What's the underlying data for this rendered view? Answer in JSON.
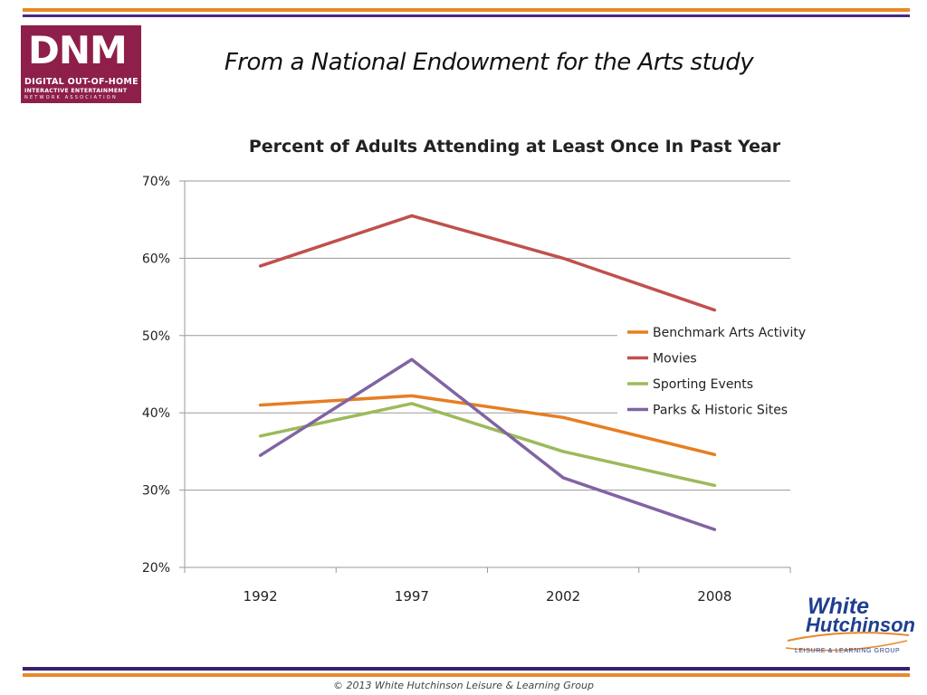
{
  "header": {
    "title": "From a National Endowment for the Arts study"
  },
  "logo_dnm": {
    "mark": "DNM",
    "line1": "DIGITAL OUT-OF-HOME",
    "line2": "INTERACTIVE ENTERTAINMENT",
    "line3": "NETWORK ASSOCIATION"
  },
  "logo_wh": {
    "word1": "White",
    "word2": "Hutchinson",
    "tagline": "LEISURE & LEARNING GROUP"
  },
  "footer": {
    "text": "© 2013 White Hutchinson Leisure & Learning Group"
  },
  "colors": {
    "accent_orange": "#e8892b",
    "accent_purple": "#4b2a83",
    "brand_maroon": "#8e1f4a"
  },
  "chart_data": {
    "type": "line",
    "title": "Percent of Adults Attending at Least Once In Past Year",
    "xlabel": "",
    "ylabel": "",
    "categories": [
      "1992",
      "1997",
      "2002",
      "2008"
    ],
    "ylim": [
      20,
      70
    ],
    "yticks": [
      20,
      30,
      40,
      50,
      60,
      70
    ],
    "ytick_labels": [
      "20%",
      "30%",
      "40%",
      "50%",
      "60%",
      "70%"
    ],
    "grid": true,
    "legend_position": "right",
    "series": [
      {
        "name": "Benchmark Arts Activity",
        "color": "#e67e22",
        "values": [
          41.0,
          42.2,
          39.4,
          34.6
        ]
      },
      {
        "name": "Movies",
        "color": "#c0504d",
        "values": [
          59.0,
          65.5,
          60.0,
          53.3
        ]
      },
      {
        "name": "Sporting Events",
        "color": "#9bbb59",
        "values": [
          37.0,
          41.2,
          35.0,
          30.6
        ]
      },
      {
        "name": "Parks & Historic Sites",
        "color": "#8064a2",
        "values": [
          34.5,
          46.9,
          31.6,
          24.9
        ]
      }
    ]
  }
}
